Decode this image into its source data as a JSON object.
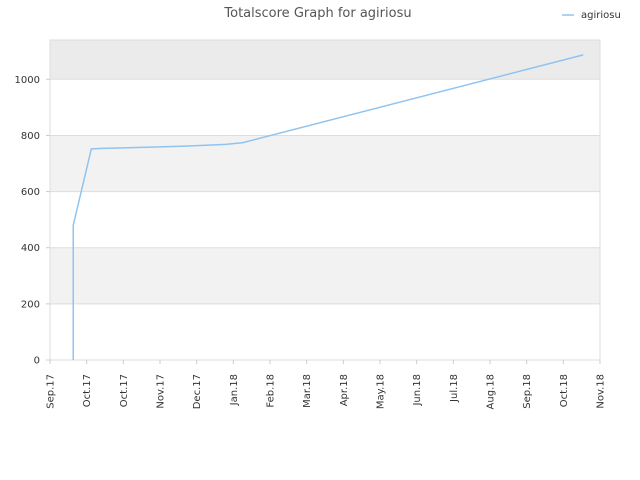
{
  "chart_data": {
    "type": "line",
    "title": "Totalscore Graph for agiriosu",
    "xlabel": "",
    "ylabel": "",
    "legend": {
      "position": "top-right"
    },
    "x_ticks": [
      "Sep.17",
      "Oct.17",
      "Oct.17",
      "Nov.17",
      "Dec.17",
      "Jan.18",
      "Feb.18",
      "Mar.18",
      "Apr.18",
      "May.18",
      "Jun.18",
      "Jul.18",
      "Aug.18",
      "Sep.18",
      "Oct.18",
      "Nov.18"
    ],
    "y_ticks": [
      0,
      200,
      400,
      600,
      800,
      1000
    ],
    "ylim": [
      0,
      1140
    ],
    "xlim": [
      "2017-09-01",
      "2018-11-01"
    ],
    "grid": true,
    "series": [
      {
        "name": "agiriosu",
        "color": "#90c4f0",
        "points": [
          {
            "x": "2017-09-19",
            "y": 0
          },
          {
            "x": "2017-09-19",
            "y": 480
          },
          {
            "x": "2017-10-03",
            "y": 752
          },
          {
            "x": "2017-10-12",
            "y": 754
          },
          {
            "x": "2017-11-15",
            "y": 758
          },
          {
            "x": "2017-12-15",
            "y": 762
          },
          {
            "x": "2018-01-15",
            "y": 768
          },
          {
            "x": "2018-01-28",
            "y": 774
          },
          {
            "x": "2018-10-19",
            "y": 1087
          }
        ]
      }
    ]
  },
  "colors": {
    "band_light": "#f2f2f2",
    "band_white": "#ffffff",
    "band_top": "#ebebeb",
    "grid": "#dddddd",
    "axis": "#cccccc"
  }
}
